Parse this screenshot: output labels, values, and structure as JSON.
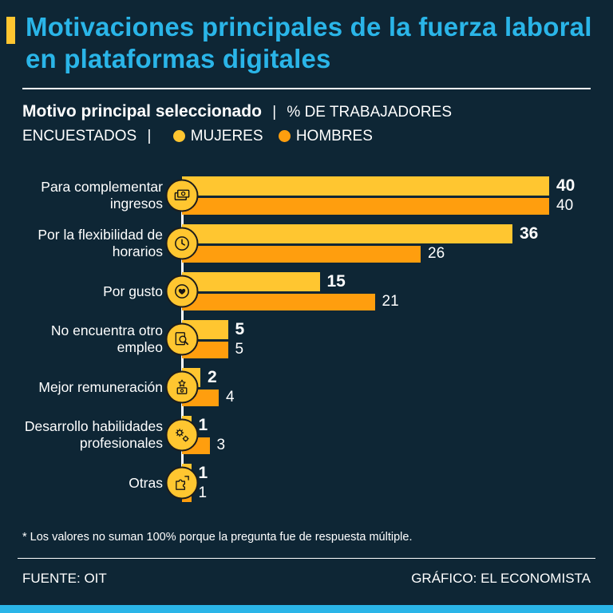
{
  "header": {
    "title": "Motivaciones principales de la fuerza laboral en plataformas digitales"
  },
  "subtitle": {
    "selected_label": "Motivo principal seleccionado",
    "separator": "|",
    "percent_label": "% DE TRABAJADORES ENCUESTADOS",
    "legend": [
      {
        "label": "MUJERES",
        "color": "#ffc630"
      },
      {
        "label": "HOMBRES",
        "color": "#ff9e0e"
      }
    ]
  },
  "chart_data": {
    "type": "bar",
    "orientation": "horizontal",
    "title": "Motivo principal seleccionado | % de trabajadores encuestados",
    "categories": [
      "Para complementar ingresos",
      "Por la flexibilidad de horarios",
      "Por gusto",
      "No encuentra otro empleo",
      "Mejor remuneración",
      "Desarrollo habilidades profesionales",
      "Otras"
    ],
    "series": [
      {
        "name": "Mujeres",
        "color": "#ffc630",
        "values": [
          40,
          36,
          15,
          5,
          2,
          1,
          1
        ]
      },
      {
        "name": "Hombres",
        "color": "#ff9e0e",
        "values": [
          40,
          26,
          21,
          5,
          4,
          3,
          1
        ]
      }
    ],
    "xlim": [
      0,
      40
    ],
    "icons": [
      "banknotes-icon",
      "clock-icon",
      "heart-icon",
      "magnifier-document-icon",
      "medal-money-icon",
      "gears-icon",
      "puzzle-icon"
    ],
    "legend_position": "top",
    "grid": false
  },
  "footnote": "* Los valores no suman 100% porque la pregunta fue de respuesta múltiple.",
  "footer": {
    "source": "FUENTE: OIT",
    "credit": "GRÁFICO: EL ECONOMISTA"
  },
  "colors": {
    "background": "#0e2635",
    "cyan": "#2ab5e8",
    "yellow": "#ffc630",
    "orange": "#ff9e0e"
  }
}
